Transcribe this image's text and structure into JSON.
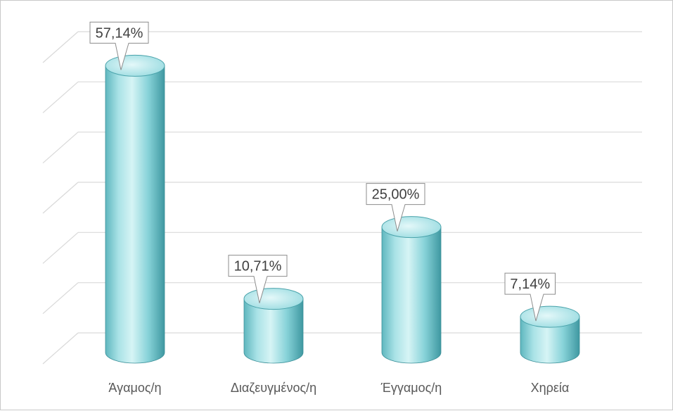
{
  "chart_data": {
    "type": "bar",
    "style": "3d-cylinder",
    "categories": [
      "Άγαμος/η",
      "Διαζευγμένος/η",
      "Έγγαμος/η",
      "Χηρεία"
    ],
    "values": [
      57.14,
      10.71,
      25.0,
      7.14
    ],
    "data_labels": [
      "57,14%",
      "10,71%",
      "25,00%",
      "7,14%"
    ],
    "unit": "%",
    "ylim": [
      0,
      60
    ],
    "grid": true,
    "legend": "none",
    "colors": {
      "bar_light": "#c8eef0",
      "bar_mid": "#7fd0d6",
      "bar_dark": "#3f9aa3",
      "grid": "#d9d9d9",
      "label_box_border": "#8c8c8c"
    }
  }
}
